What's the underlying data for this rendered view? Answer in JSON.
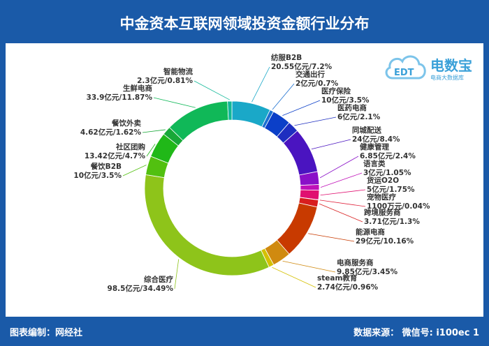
{
  "header": {
    "title": "中金资本互联网领域投资金额行业分布"
  },
  "footer": {
    "left": "图表编制：网经社",
    "right": "数据来源：        微信号: i100ec 1"
  },
  "logo": {
    "main": "电数宝",
    "sub": "电商大数据库",
    "badge": "EDT"
  },
  "chart_data": {
    "type": "pie",
    "style": "donut",
    "slices": [
      {
        "name": "纺服B2B",
        "label": "20.55亿元/7.2%",
        "value": 7.2,
        "color": "#1aa8c8"
      },
      {
        "name": "交通出行",
        "label": "2亿元/0.7%",
        "value": 0.7,
        "color": "#1b6fd0"
      },
      {
        "name": "医疗保险",
        "label": "10亿元/3.5%",
        "value": 3.5,
        "color": "#0b3fc8"
      },
      {
        "name": "医药电商",
        "label": "6亿元/2.1%",
        "value": 2.1,
        "color": "#1e2ec0"
      },
      {
        "name": "同城配送",
        "label": "24亿元/8.4%",
        "value": 8.4,
        "color": "#4a14c0"
      },
      {
        "name": "健康管理",
        "label": "6.85亿元/2.4%",
        "value": 2.4,
        "color": "#8a10c8"
      },
      {
        "name": "语言类",
        "label": "3亿元/1.05%",
        "value": 1.05,
        "color": "#c010b8"
      },
      {
        "name": "货运O2O",
        "label": "5亿元/1.75%",
        "value": 1.75,
        "color": "#e01070"
      },
      {
        "name": "宠物医疗",
        "label": "1100万元/0.04%",
        "value": 0.04,
        "color": "#e0203a"
      },
      {
        "name": "跨境服务商",
        "label": "3.71亿元/1.3%",
        "value": 1.3,
        "color": "#d81e1e"
      },
      {
        "name": "能源电商",
        "label": "29亿元/10.16%",
        "value": 10.16,
        "color": "#c83a00"
      },
      {
        "name": "电商服务商",
        "label": "9.85亿元/3.45%",
        "value": 3.45,
        "color": "#d08a10"
      },
      {
        "name": "steam教育",
        "label": "2.74亿元/0.96%",
        "value": 0.96,
        "color": "#d4c000"
      },
      {
        "name": "综合医疗",
        "label": "98.5亿元/34.49%",
        "value": 34.49,
        "color": "#8ec41a"
      },
      {
        "name": "餐饮B2B",
        "label": "10亿元/3.5%",
        "value": 3.5,
        "color": "#52c010"
      },
      {
        "name": "社区团购",
        "label": "13.42亿元/4.7%",
        "value": 4.7,
        "color": "#20b818"
      },
      {
        "name": "餐饮外卖",
        "label": "4.62亿元/1.62%",
        "value": 1.62,
        "color": "#18a838"
      },
      {
        "name": "生鲜电商",
        "label": "33.9亿元/11.87%",
        "value": 11.87,
        "color": "#10b858"
      },
      {
        "name": "智能物流",
        "label": "2.3亿元/0.81%",
        "value": 0.81,
        "color": "#10b898"
      }
    ]
  }
}
